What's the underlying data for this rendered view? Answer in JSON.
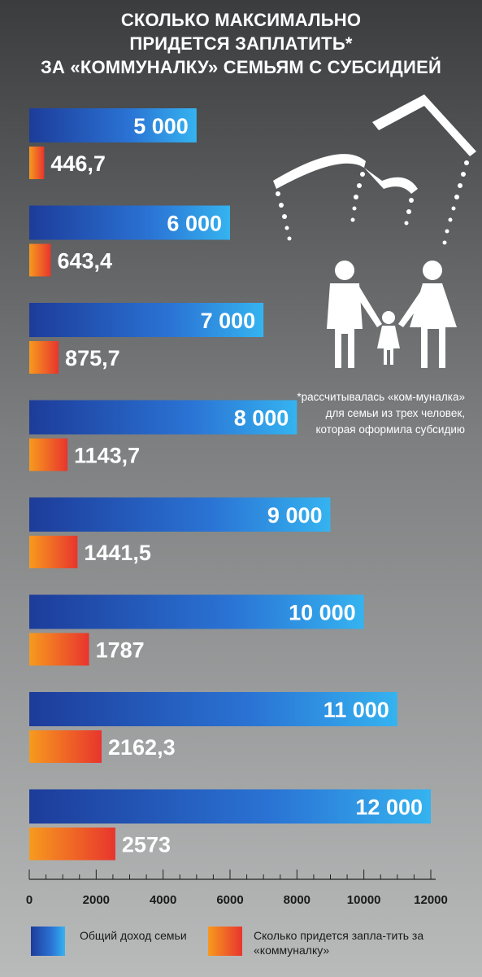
{
  "title_lines": [
    "СКОЛЬКО МАКСИМАЛЬНО",
    "ПРИДЕТСЯ ЗАПЛАТИТЬ*",
    "ЗА «КОММУНАЛКУ» СЕМЬЯМ С СУБСИДИЕЙ"
  ],
  "note": "*рассчитывалась «ком-муналка» для семьи из трех человек, которая оформила субсидию",
  "colors": {
    "income_dark": "#1d3c9a",
    "income_light": "#35b3f0",
    "payment_orange": "#f79a1e",
    "payment_red": "#e8352d"
  },
  "chart_data": {
    "type": "bar",
    "orientation": "horizontal",
    "xlim": [
      0,
      12000
    ],
    "x_ticks": [
      "0",
      "2000",
      "4000",
      "6000",
      "8000",
      "10000",
      "12000"
    ],
    "grid": false,
    "legend_placement": "bottom",
    "series": [
      {
        "name": "Общий доход семьи",
        "values": [
          5000,
          6000,
          7000,
          8000,
          9000,
          10000,
          11000,
          12000
        ],
        "labels": [
          "5 000",
          "6 000",
          "7 000",
          "8 000",
          "9 000",
          "10 000",
          "11 000",
          "12 000"
        ]
      },
      {
        "name": "Сколько придется запла-тить за «коммуналку»",
        "values": [
          446.7,
          643.4,
          875.7,
          1143.7,
          1441.5,
          1787,
          2162.3,
          2573
        ],
        "labels": [
          "446,7",
          "643,4",
          "875,7",
          "1143,7",
          "1441,5",
          "1787",
          "2162,3",
          "2573"
        ]
      }
    ]
  },
  "legend": {
    "income": "Общий доход семьи",
    "payment": "Сколько придется запла-тить за «коммуналку»"
  }
}
